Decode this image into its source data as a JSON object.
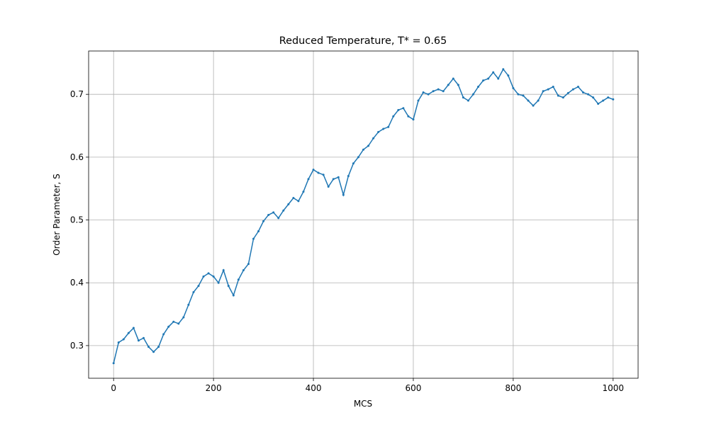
{
  "chart_data": {
    "type": "line",
    "title": "Reduced Temperature, T* = 0.65",
    "xlabel": "MCS",
    "ylabel": "Order Parameter, S",
    "x": [
      0,
      10,
      20,
      30,
      40,
      50,
      60,
      70,
      80,
      90,
      100,
      110,
      120,
      130,
      140,
      150,
      160,
      170,
      180,
      190,
      200,
      210,
      220,
      230,
      240,
      250,
      260,
      270,
      280,
      290,
      300,
      310,
      320,
      330,
      340,
      350,
      360,
      370,
      380,
      390,
      400,
      410,
      420,
      430,
      440,
      450,
      460,
      470,
      480,
      490,
      500,
      510,
      520,
      530,
      540,
      550,
      560,
      570,
      580,
      590,
      600,
      610,
      620,
      630,
      640,
      650,
      660,
      670,
      680,
      690,
      700,
      710,
      720,
      730,
      740,
      750,
      760,
      770,
      780,
      790,
      800,
      810,
      820,
      830,
      840,
      850,
      860,
      870,
      880,
      890,
      900,
      910,
      920,
      930,
      940,
      950,
      960,
      970,
      980,
      990,
      1000
    ],
    "series": [
      {
        "name": "S",
        "color": "#1f77b4",
        "values": [
          0.272,
          0.305,
          0.31,
          0.32,
          0.328,
          0.308,
          0.312,
          0.298,
          0.29,
          0.298,
          0.318,
          0.33,
          0.338,
          0.335,
          0.345,
          0.365,
          0.385,
          0.395,
          0.41,
          0.415,
          0.41,
          0.4,
          0.42,
          0.395,
          0.38,
          0.405,
          0.42,
          0.43,
          0.47,
          0.482,
          0.498,
          0.508,
          0.512,
          0.503,
          0.515,
          0.525,
          0.535,
          0.53,
          0.545,
          0.565,
          0.58,
          0.575,
          0.572,
          0.553,
          0.565,
          0.568,
          0.54,
          0.57,
          0.59,
          0.6,
          0.612,
          0.618,
          0.63,
          0.64,
          0.645,
          0.648,
          0.665,
          0.675,
          0.678,
          0.665,
          0.66,
          0.69,
          0.703,
          0.7,
          0.705,
          0.708,
          0.705,
          0.715,
          0.725,
          0.715,
          0.695,
          0.69,
          0.7,
          0.712,
          0.722,
          0.725,
          0.735,
          0.725,
          0.74,
          0.73,
          0.71,
          0.7,
          0.698,
          0.69,
          0.682,
          0.69,
          0.705,
          0.708,
          0.712,
          0.698,
          0.695,
          0.702,
          0.708,
          0.712,
          0.703,
          0.7,
          0.695,
          0.685,
          0.69,
          0.695,
          0.692
        ]
      }
    ],
    "xlim": [
      -50,
      1050
    ],
    "ylim": [
      0.248,
      0.769
    ],
    "xticks": [
      0,
      200,
      400,
      600,
      800,
      1000
    ],
    "yticks": [
      0.3,
      0.4,
      0.5,
      0.6,
      0.7
    ],
    "grid": true
  }
}
